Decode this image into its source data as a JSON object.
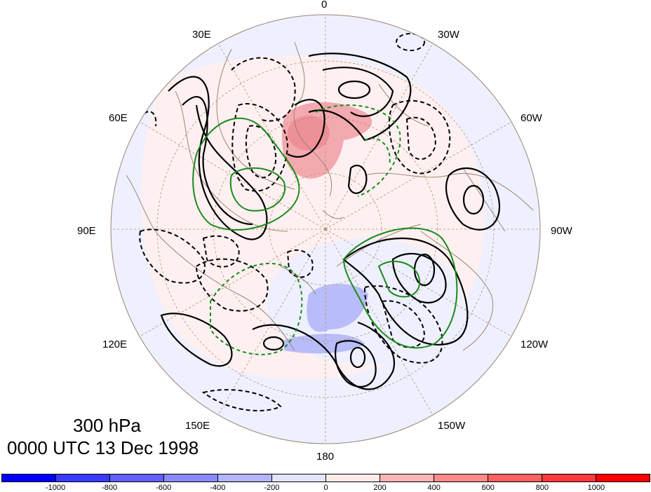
{
  "map": {
    "projection": "polar stereographic (north pole)",
    "longitude_labels": [
      {
        "text": "0"
      },
      {
        "text": "30W"
      },
      {
        "text": "60W"
      },
      {
        "text": "90W"
      },
      {
        "text": "120W"
      },
      {
        "text": "150W"
      },
      {
        "text": "180"
      },
      {
        "text": "150E"
      },
      {
        "text": "120E"
      },
      {
        "text": "90E"
      },
      {
        "text": "60E"
      },
      {
        "text": "30E"
      }
    ],
    "line_colors": {
      "contour": "#000000",
      "green_contour": "#1a8a1a",
      "coast": "#9a8472",
      "graticule": "#b09070"
    }
  },
  "titles": {
    "level": "300 hPa",
    "time": "0000 UTC 13 Dec 1998"
  },
  "colorbar": {
    "colors": [
      "#0000ff",
      "#3a3aff",
      "#6060ff",
      "#8a8aff",
      "#b4b4ff",
      "#e4e4ff",
      "#ffeaea",
      "#ffb4b4",
      "#ff8a8a",
      "#ff6060",
      "#ff3a3a",
      "#ff0000"
    ],
    "tick_labels": [
      "-1000",
      "-800",
      "-600",
      "-400",
      "-200",
      "0",
      "200",
      "400",
      "600",
      "800",
      "1000"
    ]
  }
}
